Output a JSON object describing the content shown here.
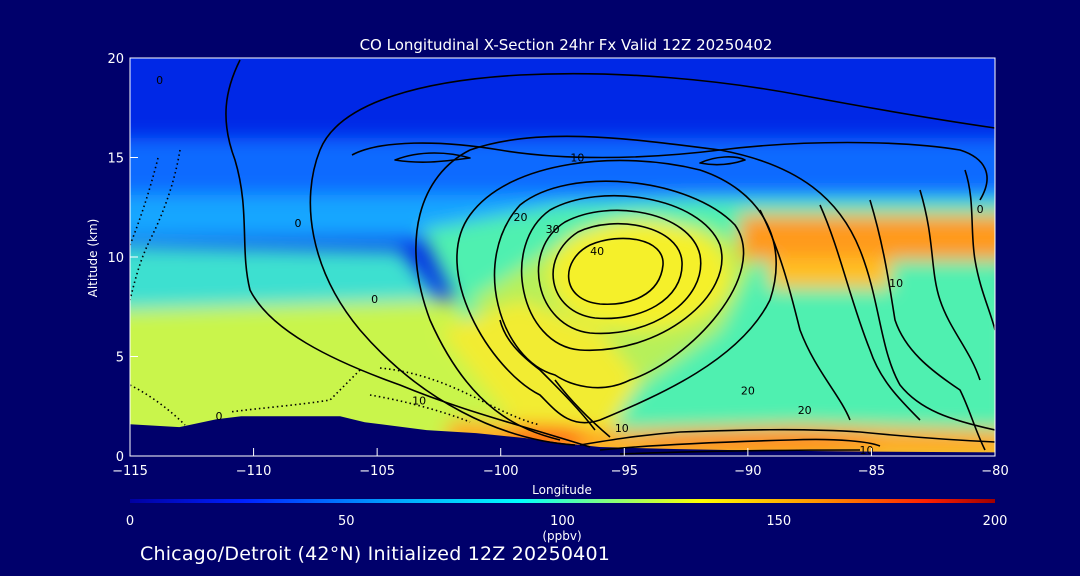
{
  "chart_data": {
    "type": "heatmap",
    "title": "CO Longitudinal X-Section 24hr  Fx Valid 12Z 20250402",
    "xlabel": "Longitude",
    "ylabel": "Altitude (km)",
    "xlim": [
      -115,
      -80
    ],
    "ylim": [
      0,
      20
    ],
    "x_ticks": [
      "−115",
      "−110",
      "−105",
      "−100",
      "−95",
      "−90",
      "−85",
      "−80"
    ],
    "x_tick_values": [
      -115,
      -110,
      -105,
      -100,
      -95,
      -90,
      -85,
      -80
    ],
    "y_ticks": [
      "0",
      "5",
      "10",
      "15",
      "20"
    ],
    "y_tick_values": [
      0,
      5,
      10,
      15,
      20
    ],
    "colorbar": {
      "range": [
        0,
        200
      ],
      "ticks": [
        "0",
        "50",
        "100",
        "150",
        "200"
      ],
      "tick_values": [
        0,
        50,
        100,
        150,
        200
      ],
      "unit": "(ppbv)",
      "colors": [
        "#0000a0",
        "#0020ff",
        "#00a0ff",
        "#00ffff",
        "#80ff80",
        "#ffff00",
        "#ff9000",
        "#ff2000",
        "#a00000"
      ]
    },
    "contour_labels": [
      {
        "text": "0",
        "lon": -113.8,
        "alt": 18.9
      },
      {
        "text": "10",
        "lon": -96.9,
        "alt": 15.0
      },
      {
        "text": "0",
        "lon": -108.2,
        "alt": 11.7
      },
      {
        "text": "20",
        "lon": -99.2,
        "alt": 12.0
      },
      {
        "text": "30",
        "lon": -97.9,
        "alt": 11.4
      },
      {
        "text": "40",
        "lon": -96.1,
        "alt": 10.3
      },
      {
        "text": "0",
        "lon": -80.6,
        "alt": 12.4
      },
      {
        "text": "10",
        "lon": -84.0,
        "alt": 8.7
      },
      {
        "text": "0",
        "lon": -105.1,
        "alt": 7.9
      },
      {
        "text": "20",
        "lon": -90.0,
        "alt": 3.3
      },
      {
        "text": "20",
        "lon": -87.7,
        "alt": 2.3
      },
      {
        "text": "10",
        "lon": -103.3,
        "alt": 2.8
      },
      {
        "text": "0",
        "lon": -111.4,
        "alt": 2.0
      },
      {
        "text": "10",
        "lon": -95.1,
        "alt": 1.4
      },
      {
        "text": "10",
        "lon": -85.2,
        "alt": 0.3
      }
    ],
    "terrain": [
      [
        -115,
        1.6
      ],
      [
        -113,
        1.45
      ],
      [
        -111.5,
        1.85
      ],
      [
        -110.5,
        2.0
      ],
      [
        -108,
        2.0
      ],
      [
        -106.5,
        2.0
      ],
      [
        -105.5,
        1.7
      ],
      [
        -103,
        1.3
      ],
      [
        -101,
        1.15
      ],
      [
        -99,
        0.9
      ],
      [
        -97.5,
        0.65
      ],
      [
        -96,
        0.45
      ],
      [
        -93,
        0.35
      ],
      [
        -90,
        0.28
      ],
      [
        -85,
        0.22
      ],
      [
        -80,
        0.18
      ]
    ]
  },
  "caption": "Chicago/Detroit (42°N) Initialized 12Z 20250401"
}
